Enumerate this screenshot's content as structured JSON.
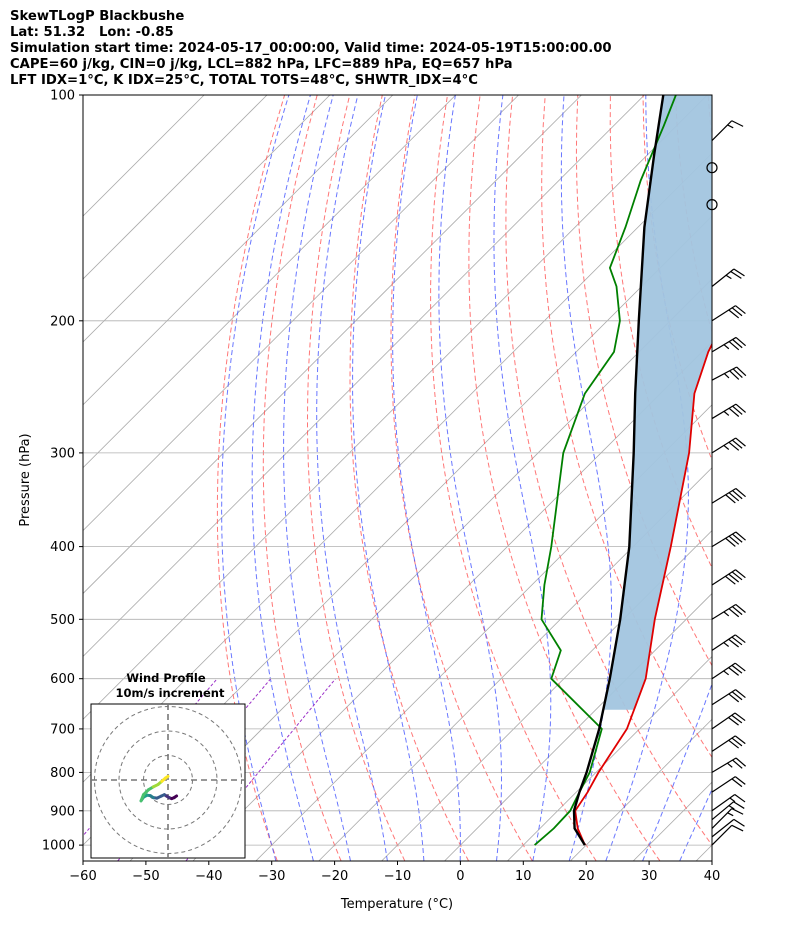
{
  "header": {
    "line1": "SkewTLogP Blackbushe",
    "line2": "Lat: 51.32   Lon: -0.85",
    "line3": "Simulation start time: 2024-05-17_00:00:00, Valid time: 2024-05-19T15:00:00.00",
    "line4": "CAPE=60 j/kg, CIN=0 j/kg, LCL=882 hPa, LFC=889 hPa, EQ=657 hPa",
    "line5": "LFT IDX=1°C, K IDX=25°C, TOTAL TOTS=48°C, SHWTR_IDX=4°C"
  },
  "chart_data": {
    "type": "skewt",
    "xlabel": "Temperature (°C)",
    "ylabel": "Pressure (hPa)",
    "xlim": [
      -60,
      40
    ],
    "ylim": [
      1050,
      100
    ],
    "x_ticks": [
      -60,
      -50,
      -40,
      -30,
      -20,
      -10,
      0,
      10,
      20,
      30,
      40
    ],
    "x_tick_labels": [
      "−60",
      "−50",
      "−40",
      "−30",
      "−20",
      "−10",
      "0",
      "10",
      "20",
      "30",
      "40"
    ],
    "y_ticks": [
      1000,
      900,
      800,
      700,
      600,
      500,
      400,
      300,
      200,
      100
    ],
    "y_tick_labels": [
      "1000",
      "900",
      "800",
      "700",
      "600",
      "500",
      "400",
      "300",
      "200",
      "100"
    ],
    "colors": {
      "temperature": "#e00000",
      "dewpoint": "#008000",
      "parcel": "#000000",
      "cape_fill": "#a2c5df",
      "dry_adiabat": "#ff5555",
      "moist_adiabat": "#4455ff",
      "mixing_ratio": "#9b30c8",
      "isotherm": "#aaaaaa"
    },
    "series": [
      {
        "name": "temperature",
        "points": [
          [
            1000,
            19.8
          ],
          [
            950,
            16.0
          ],
          [
            900,
            12.8
          ],
          [
            850,
            11.8
          ],
          [
            800,
            10.4
          ],
          [
            700,
            8.0
          ],
          [
            600,
            3.0
          ],
          [
            500,
            -5.0
          ],
          [
            400,
            -14.0
          ],
          [
            300,
            -26.0
          ],
          [
            250,
            -34.6
          ],
          [
            220,
            -39.0
          ],
          [
            200,
            -41.5
          ],
          [
            185,
            -44.0
          ],
          [
            170,
            -48.5
          ],
          [
            150,
            -54.0
          ],
          [
            120,
            -62.0
          ],
          [
            100,
            -70.0
          ]
        ]
      },
      {
        "name": "dewpoint",
        "points": [
          [
            1000,
            11.8
          ],
          [
            950,
            12.2
          ],
          [
            900,
            12.0
          ],
          [
            850,
            10.5
          ],
          [
            800,
            9.0
          ],
          [
            700,
            4.0
          ],
          [
            600,
            -12.0
          ],
          [
            550,
            -15.0
          ],
          [
            500,
            -23.0
          ],
          [
            450,
            -28.0
          ],
          [
            400,
            -33.0
          ],
          [
            300,
            -46.0
          ],
          [
            250,
            -52.0
          ],
          [
            220,
            -54.0
          ],
          [
            200,
            -58.0
          ],
          [
            180,
            -64.0
          ],
          [
            170,
            -68.0
          ],
          [
            150,
            -72.0
          ],
          [
            130,
            -77.0
          ],
          [
            110,
            -82.0
          ],
          [
            100,
            -85.0
          ]
        ]
      },
      {
        "name": "parcel",
        "points": [
          [
            1000,
            19.8
          ],
          [
            950,
            15.5
          ],
          [
            900,
            12.6
          ],
          [
            850,
            10.5
          ],
          [
            800,
            8.5
          ],
          [
            700,
            3.6
          ],
          [
            600,
            -2.7
          ],
          [
            500,
            -10.5
          ],
          [
            400,
            -20.6
          ],
          [
            300,
            -34.8
          ],
          [
            250,
            -44.0
          ],
          [
            200,
            -55.0
          ],
          [
            150,
            -69.0
          ],
          [
            120,
            -79.0
          ],
          [
            100,
            -87.0
          ]
        ]
      }
    ],
    "wind_barbs": [
      {
        "p": 1000,
        "u": 4,
        "v": 4
      },
      {
        "p": 975,
        "u": 5,
        "v": 4
      },
      {
        "p": 950,
        "u": 5,
        "v": 5
      },
      {
        "p": 925,
        "u": 6,
        "v": 5
      },
      {
        "p": 900,
        "u": 7,
        "v": 5
      },
      {
        "p": 850,
        "u": 9,
        "v": 6
      },
      {
        "p": 800,
        "u": 10,
        "v": 6
      },
      {
        "p": 750,
        "u": 12,
        "v": 8
      },
      {
        "p": 700,
        "u": 13,
        "v": 9
      },
      {
        "p": 650,
        "u": 14,
        "v": 9
      },
      {
        "p": 600,
        "u": 15,
        "v": 10
      },
      {
        "p": 550,
        "u": 15,
        "v": 10
      },
      {
        "p": 500,
        "u": 16,
        "v": 10
      },
      {
        "p": 450,
        "u": 17,
        "v": 11
      },
      {
        "p": 400,
        "u": 18,
        "v": 11
      },
      {
        "p": 350,
        "u": 18,
        "v": 11
      },
      {
        "p": 300,
        "u": 16,
        "v": 10
      },
      {
        "p": 270,
        "u": 15,
        "v": 9
      },
      {
        "p": 240,
        "u": 15,
        "v": 8
      },
      {
        "p": 220,
        "u": 15,
        "v": 9
      },
      {
        "p": 200,
        "u": 14,
        "v": 9
      },
      {
        "p": 180,
        "u": 10,
        "v": 8
      },
      {
        "p": 140,
        "u": 0,
        "v": 0
      },
      {
        "p": 125,
        "u": 0,
        "v": 0
      },
      {
        "p": 115,
        "u": 6,
        "v": 6
      }
    ],
    "hodograph": {
      "title": "Wind Profile",
      "subtitle": "10m/s increment",
      "rings": [
        10,
        20,
        30
      ],
      "points": [
        [
          3.5,
          -6.5
        ],
        [
          2.5,
          -7.2
        ],
        [
          1.5,
          -7.6
        ],
        [
          0.5,
          -7.2
        ],
        [
          -0.5,
          -6.6
        ],
        [
          -1.5,
          -6.0
        ],
        [
          -2.8,
          -6.6
        ],
        [
          -4.5,
          -7.4
        ],
        [
          -6.0,
          -7.2
        ],
        [
          -7.2,
          -6.4
        ],
        [
          -8.5,
          -6.2
        ],
        [
          -10.0,
          -7.0
        ],
        [
          -11.0,
          -8.5
        ],
        [
          -10.0,
          -6.0
        ],
        [
          -8.0,
          -4.0
        ],
        [
          -6.0,
          -2.8
        ],
        [
          -4.0,
          -1.8
        ],
        [
          -2.5,
          -0.5
        ],
        [
          -1.0,
          0.8
        ],
        [
          0.0,
          1.5
        ]
      ]
    }
  }
}
